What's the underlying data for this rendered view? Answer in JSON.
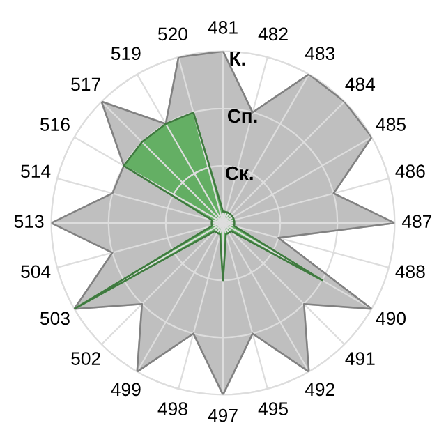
{
  "chart_data": {
    "type": "radar",
    "categories": [
      "481",
      "482",
      "483",
      "484",
      "485",
      "486",
      "487",
      "488",
      "490",
      "491",
      "492",
      "495",
      "497",
      "498",
      "499",
      "502",
      "503",
      "504",
      "513",
      "514",
      "516",
      "517",
      "519",
      "520"
    ],
    "ylim": [
      0,
      3
    ],
    "yticks": [
      {
        "value": 1,
        "label": "Ск."
      },
      {
        "value": 2,
        "label": "Сп."
      },
      {
        "value": 3,
        "label": "К."
      }
    ],
    "grid": true,
    "series": [
      {
        "color": "#b8b8b8",
        "values": [
          3,
          2,
          3,
          3,
          3,
          2,
          3,
          1,
          3,
          2,
          3,
          2,
          3,
          2,
          3,
          2,
          3,
          2,
          3,
          2,
          2,
          3,
          2,
          3
        ]
      },
      {
        "color": "#5aad5a",
        "values": [
          0.2,
          0.2,
          0.2,
          0.2,
          0.2,
          0.2,
          0.2,
          0.2,
          2,
          0.2,
          0.2,
          0.2,
          1,
          0.2,
          0.2,
          0.2,
          3,
          0.2,
          0.2,
          0.2,
          2,
          2,
          2,
          2
        ]
      }
    ]
  }
}
